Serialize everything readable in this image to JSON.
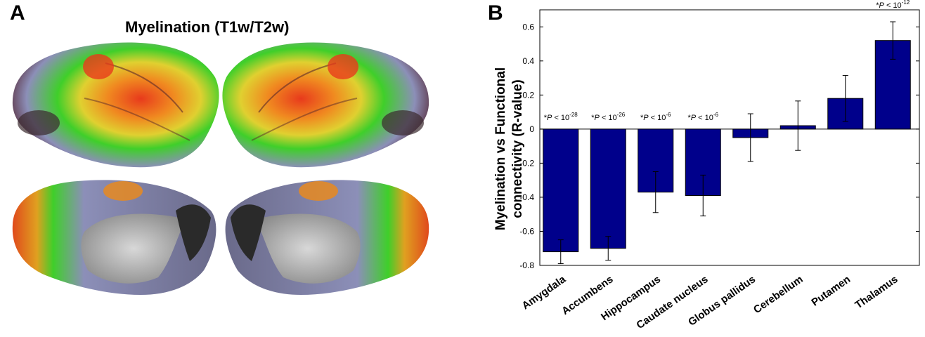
{
  "panel_a": {
    "label": "A",
    "title": "Myelination (T1w/T2w)"
  },
  "panel_b": {
    "label": "B"
  },
  "chart_data": {
    "type": "bar",
    "categories": [
      "Amygdala",
      "Accumbens",
      "Hippocampus",
      "Caudate nucleus",
      "Globus pallidus",
      "Cerebellum",
      "Putamen",
      "Thalamus"
    ],
    "values": [
      -0.72,
      -0.7,
      -0.37,
      -0.39,
      -0.05,
      0.02,
      0.18,
      0.52
    ],
    "errors": [
      0.07,
      0.07,
      0.12,
      0.12,
      0.14,
      0.145,
      0.135,
      0.11
    ],
    "ylabel": "Myelination vs Functional connectivity (R-value)",
    "ylabel_lines": [
      "Myelination vs Functional",
      "connectivity (R-value)"
    ],
    "xlabel": "",
    "ylim": [
      -0.8,
      0.7
    ],
    "yticks": [
      0.6,
      0.4,
      0.2,
      0,
      -0.2,
      -0.4,
      -0.6,
      -0.8
    ],
    "ytick_labels": [
      "0.6",
      "0.4",
      "0.2",
      "0",
      "-0.2",
      "-0.4",
      "-0.6",
      "-0.8"
    ],
    "bar_color": "#00008b",
    "annotations": [
      {
        "category": "Amygdala",
        "prefix": "*",
        "italic": "P",
        "text": " < 10",
        "exp": "-28"
      },
      {
        "category": "Accumbens",
        "prefix": "*",
        "italic": "P",
        "text": " < 10",
        "exp": "-26"
      },
      {
        "category": "Hippocampus",
        "prefix": "*",
        "italic": "P",
        "text": " < 10",
        "exp": "-6"
      },
      {
        "category": "Caudate nucleus",
        "prefix": "*",
        "italic": "P",
        "text": " < 10",
        "exp": "-6"
      },
      {
        "category": "Thalamus",
        "prefix": "*",
        "italic": "P",
        "text": " < 10",
        "exp": "-12"
      }
    ]
  }
}
